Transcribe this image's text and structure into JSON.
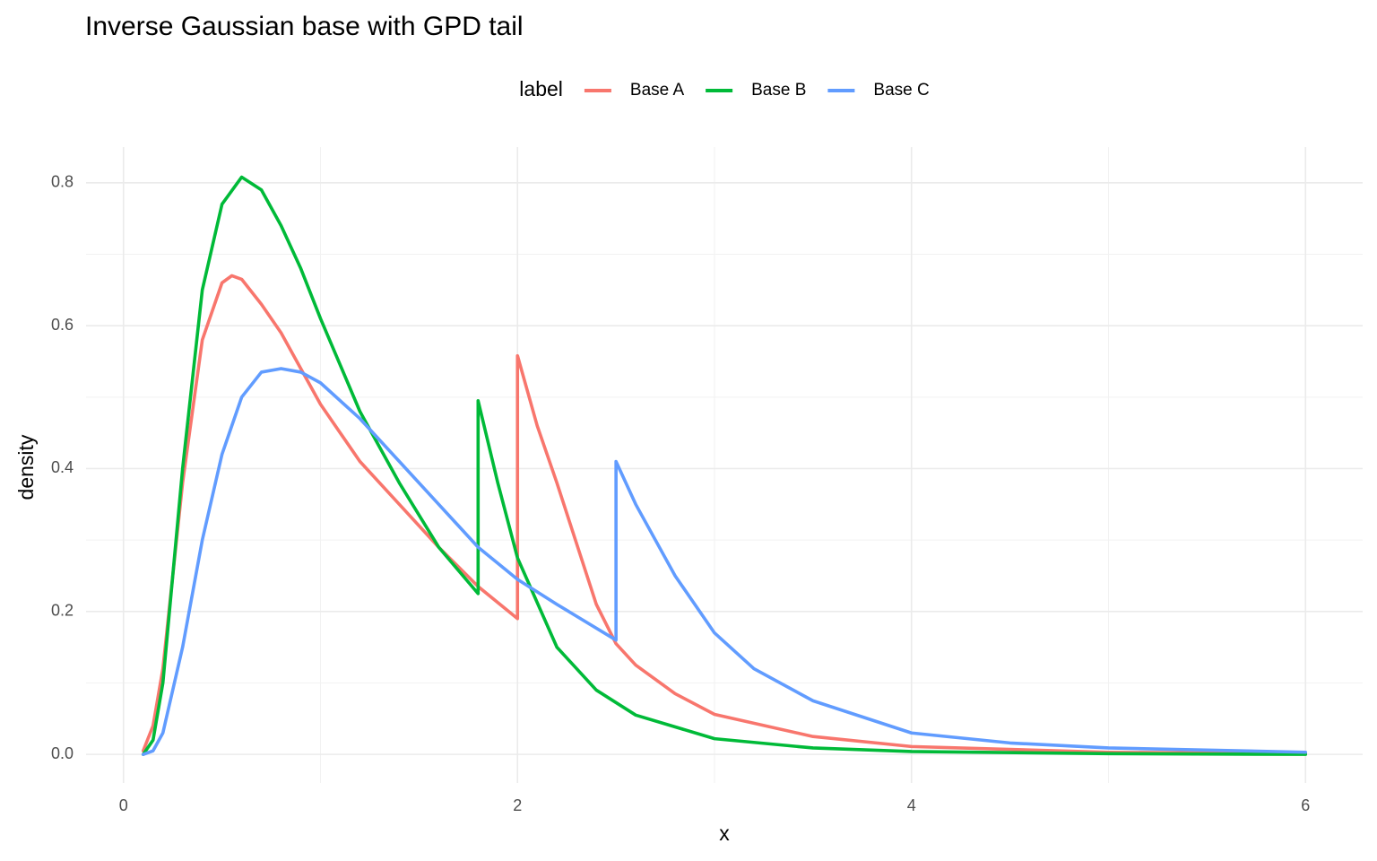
{
  "chart_data": {
    "type": "line",
    "title": "Inverse Gaussian base with GPD tail",
    "x_label": "x",
    "y_label": "density",
    "legend_title": "label",
    "legend_position": "top",
    "grid": true,
    "xlim": [
      -0.19,
      6.29
    ],
    "ylim": [
      -0.04,
      0.85
    ],
    "xticks": [
      0,
      2,
      4,
      6
    ],
    "yticks": [
      {
        "value": 0,
        "label": "0.0"
      },
      0.2,
      0.4,
      0.6,
      0.8
    ],
    "minor_xticks": [
      1,
      3,
      5
    ],
    "minor_yticks": [
      0.1,
      0.3,
      0.5,
      0.7
    ],
    "series": [
      {
        "name": "Base A",
        "color": "#F8766D",
        "x": [
          0.1,
          0.15,
          0.2,
          0.3,
          0.4,
          0.5,
          0.55,
          0.6,
          0.7,
          0.8,
          0.9,
          1.0,
          1.2,
          1.4,
          1.6,
          1.8,
          2.0,
          2.0,
          2.1,
          2.2,
          2.4,
          2.5,
          2.6,
          2.8,
          3.0,
          3.5,
          4.0,
          5.0,
          6.0
        ],
        "values": [
          0.005,
          0.04,
          0.12,
          0.38,
          0.58,
          0.66,
          0.67,
          0.665,
          0.63,
          0.59,
          0.54,
          0.49,
          0.41,
          0.35,
          0.29,
          0.235,
          0.19,
          0.558,
          0.46,
          0.38,
          0.21,
          0.155,
          0.125,
          0.085,
          0.056,
          0.025,
          0.011,
          0.003,
          0.001
        ]
      },
      {
        "name": "Base B",
        "color": "#00BA38",
        "x": [
          0.1,
          0.15,
          0.2,
          0.3,
          0.4,
          0.5,
          0.6,
          0.7,
          0.8,
          0.9,
          1.0,
          1.2,
          1.4,
          1.6,
          1.8,
          1.8,
          1.9,
          2.0,
          2.2,
          2.4,
          2.6,
          3.0,
          3.5,
          4.0,
          5.0,
          6.0
        ],
        "values": [
          0.0,
          0.02,
          0.1,
          0.4,
          0.65,
          0.77,
          0.808,
          0.79,
          0.74,
          0.68,
          0.61,
          0.48,
          0.38,
          0.29,
          0.225,
          0.495,
          0.38,
          0.275,
          0.15,
          0.09,
          0.055,
          0.022,
          0.009,
          0.004,
          0.001,
          0.0
        ]
      },
      {
        "name": "Base C",
        "color": "#619CFF",
        "x": [
          0.1,
          0.15,
          0.2,
          0.3,
          0.4,
          0.5,
          0.6,
          0.7,
          0.8,
          0.9,
          1.0,
          1.2,
          1.4,
          1.6,
          1.8,
          2.0,
          2.2,
          2.5,
          2.5,
          2.6,
          2.8,
          3.0,
          3.2,
          3.5,
          4.0,
          4.5,
          5.0,
          6.0
        ],
        "values": [
          0.0,
          0.005,
          0.03,
          0.15,
          0.3,
          0.42,
          0.5,
          0.535,
          0.54,
          0.535,
          0.52,
          0.47,
          0.41,
          0.35,
          0.29,
          0.245,
          0.21,
          0.16,
          0.41,
          0.35,
          0.25,
          0.17,
          0.12,
          0.075,
          0.03,
          0.016,
          0.009,
          0.003
        ]
      }
    ]
  }
}
